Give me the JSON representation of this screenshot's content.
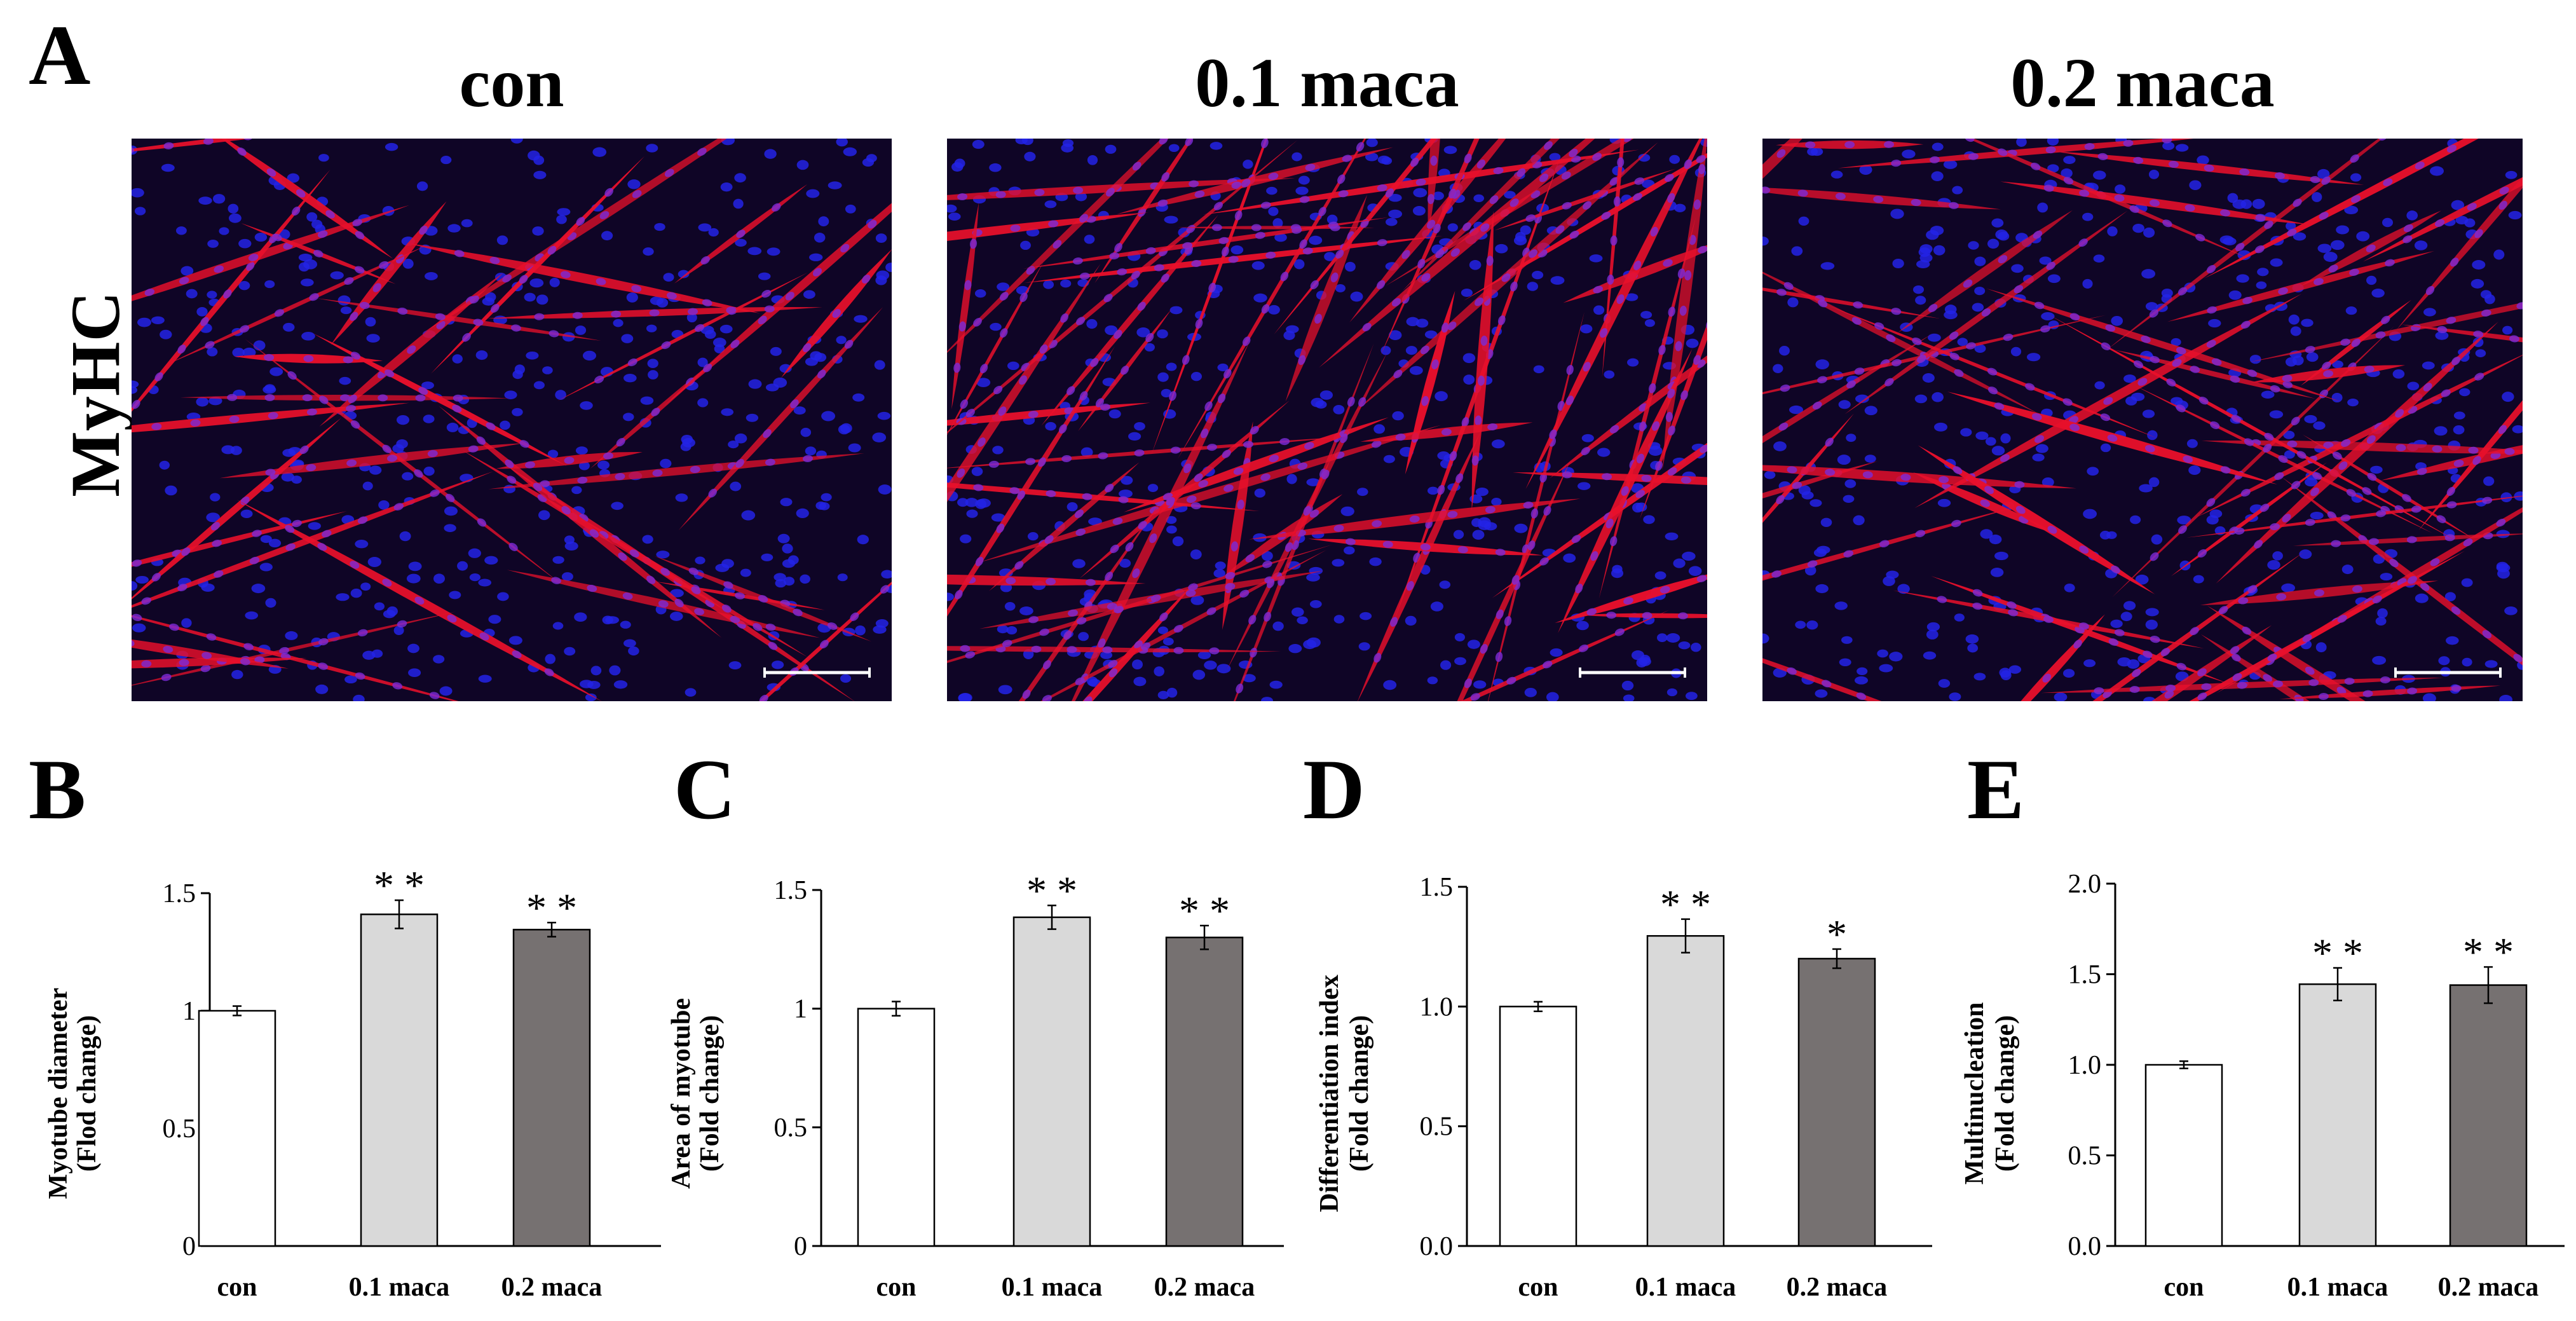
{
  "figure": {
    "panel_letters": [
      "A",
      "B",
      "C",
      "D",
      "E"
    ],
    "conditions": [
      "con",
      "0.1 maca",
      "0.2 maca"
    ],
    "stain_label": "MyHC"
  },
  "colors": {
    "con": "#ffffff",
    "maca_01": "#d9d9d9",
    "maca_02": "#767171",
    "micro_bg": "#0f0526",
    "myotube": "#e8102b",
    "nucleus": "#2323e6",
    "scale_bar": "#ffffff"
  },
  "chart_data": [
    {
      "type": "bar",
      "panel": "B",
      "categories": [
        "con",
        "0.1 maca",
        "0.2 maca"
      ],
      "values": [
        1.0,
        1.41,
        1.345
      ],
      "errors": [
        0.02,
        0.06,
        0.03
      ],
      "significance": [
        "",
        "* *",
        "* *"
      ],
      "ylabel": "Myotube diameter",
      "ylabel2": "(Flod change)",
      "ylim": [
        0,
        1.5
      ],
      "yticks": [
        0,
        0.5,
        1,
        1.5
      ],
      "ytick_labels": [
        "0",
        "0.5",
        "1",
        "1.5"
      ]
    },
    {
      "type": "bar",
      "panel": "C",
      "categories": [
        "con",
        "0.1 maca",
        "0.2 maca"
      ],
      "values": [
        1.0,
        1.385,
        1.3
      ],
      "errors": [
        0.03,
        0.05,
        0.05
      ],
      "significance": [
        "",
        "* *",
        "* *"
      ],
      "ylabel": "Area of myotube",
      "ylabel2": "(Fold change)",
      "ylim": [
        0,
        1.5
      ],
      "yticks": [
        0,
        0.5,
        1,
        1.5
      ],
      "ytick_labels": [
        "0",
        "0.5",
        "1",
        "1.5"
      ]
    },
    {
      "type": "bar",
      "panel": "D",
      "categories": [
        "con",
        "0.1 maca",
        "0.2 maca"
      ],
      "values": [
        1.0,
        1.295,
        1.2
      ],
      "errors": [
        0.02,
        0.07,
        0.04
      ],
      "significance": [
        "",
        "* *",
        "*"
      ],
      "ylabel": "Differentiation index",
      "ylabel2": "(Fold change)",
      "ylim": [
        0,
        1.5
      ],
      "yticks": [
        0,
        0.5,
        1.0,
        1.5
      ],
      "ytick_labels": [
        "0.0",
        "0.5",
        "1.0",
        "1.5"
      ]
    },
    {
      "type": "bar",
      "panel": "E",
      "categories": [
        "con",
        "0.1 maca",
        "0.2 maca"
      ],
      "values": [
        1.0,
        1.445,
        1.44
      ],
      "errors": [
        0.02,
        0.09,
        0.1
      ],
      "significance": [
        "",
        "* *",
        "* *"
      ],
      "ylabel": "Multinucleation",
      "ylabel2": "(Fold change)",
      "ylim": [
        0,
        2.0
      ],
      "yticks": [
        0,
        0.5,
        1.0,
        1.5,
        2.0
      ],
      "ytick_labels": [
        "0.0",
        "0.5",
        "1.0",
        "1.5",
        "2.0"
      ]
    }
  ]
}
